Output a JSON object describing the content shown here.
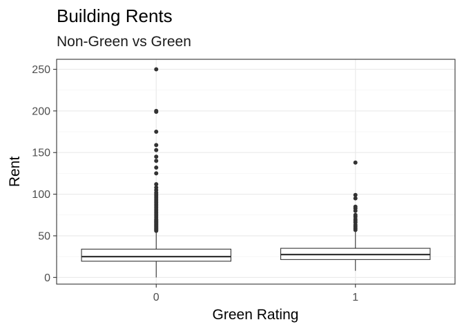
{
  "chart_data": {
    "type": "boxplot",
    "title": "Building Rents",
    "subtitle": "Non-Green vs Green",
    "xlabel": "Green Rating",
    "ylabel": "Rent",
    "categories": [
      "0",
      "1"
    ],
    "ylim": [
      -8,
      262
    ],
    "yticks": [
      0,
      50,
      100,
      150,
      200,
      250
    ],
    "grid": true,
    "legend": "none",
    "boxes": [
      {
        "category": "0",
        "whisker_low": 0,
        "q1": 19.5,
        "median": 25,
        "q3": 34,
        "whisker_high": 55,
        "outliers": [
          56,
          57,
          58,
          59,
          60,
          61,
          62,
          63,
          64,
          65,
          66,
          67,
          68,
          69,
          70,
          72,
          74,
          76,
          78,
          80,
          82,
          84,
          86,
          88,
          90,
          92,
          94,
          96,
          98,
          100,
          102,
          105,
          108,
          112,
          125,
          132,
          140,
          145,
          153,
          159,
          175,
          199,
          200,
          250
        ]
      },
      {
        "category": "1",
        "whisker_low": 8,
        "q1": 21.5,
        "median": 27.5,
        "q3": 35,
        "whisker_high": 55,
        "outliers": [
          57,
          59,
          61,
          63,
          66,
          68,
          70,
          73,
          75,
          80,
          83,
          85,
          95,
          99,
          138
        ]
      }
    ]
  }
}
